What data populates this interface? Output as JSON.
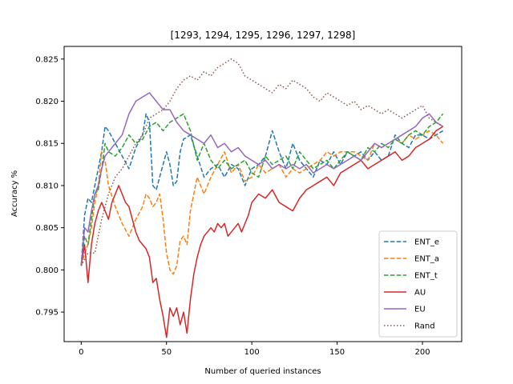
{
  "chart_data": {
    "type": "line",
    "title": "[1293, 1294, 1295, 1296, 1297, 1298]",
    "xlabel": "Number of queried instances",
    "ylabel": "Accuracy %",
    "xlim": [
      -10,
      223
    ],
    "ylim": [
      0.7915,
      0.8265
    ],
    "xticks": [
      0,
      50,
      100,
      150,
      200
    ],
    "yticks": [
      0.795,
      0.8,
      0.805,
      0.81,
      0.815,
      0.82,
      0.825
    ],
    "ytick_labels": [
      "0.795",
      "0.800",
      "0.805",
      "0.810",
      "0.815",
      "0.820",
      "0.825"
    ],
    "grid": false,
    "legend_position": "lower-right",
    "series": [
      {
        "name": "ENT_e",
        "color": "#1f77b4",
        "dash": "dashed",
        "x": [
          0,
          2,
          4,
          6,
          8,
          10,
          12,
          14,
          16,
          20,
          24,
          28,
          32,
          36,
          38,
          40,
          42,
          44,
          46,
          48,
          50,
          52,
          54,
          56,
          58,
          60,
          64,
          68,
          72,
          76,
          80,
          84,
          88,
          92,
          96,
          100,
          104,
          108,
          112,
          116,
          120,
          124,
          128,
          132,
          136,
          140,
          144,
          148,
          152,
          156,
          160,
          164,
          168,
          172,
          176,
          180,
          184,
          188,
          192,
          196,
          200,
          204,
          208,
          212
        ],
        "y": [
          0.8005,
          0.8065,
          0.8085,
          0.808,
          0.81,
          0.812,
          0.814,
          0.817,
          0.8165,
          0.815,
          0.8135,
          0.812,
          0.8145,
          0.816,
          0.8185,
          0.8175,
          0.81,
          0.8095,
          0.811,
          0.8125,
          0.814,
          0.8125,
          0.81,
          0.8105,
          0.814,
          0.8155,
          0.816,
          0.8135,
          0.811,
          0.812,
          0.8125,
          0.811,
          0.8125,
          0.812,
          0.81,
          0.812,
          0.8125,
          0.8135,
          0.8165,
          0.814,
          0.812,
          0.815,
          0.813,
          0.812,
          0.811,
          0.813,
          0.8125,
          0.814,
          0.8125,
          0.814,
          0.8135,
          0.814,
          0.813,
          0.814,
          0.813,
          0.8135,
          0.816,
          0.815,
          0.8145,
          0.816,
          0.816,
          0.8155,
          0.816,
          0.8165
        ]
      },
      {
        "name": "ENT_a",
        "color": "#ff7f0e",
        "dash": "dashed",
        "x": [
          0,
          2,
          4,
          6,
          8,
          10,
          12,
          14,
          16,
          20,
          24,
          28,
          32,
          36,
          38,
          40,
          42,
          44,
          46,
          48,
          50,
          52,
          54,
          56,
          58,
          60,
          62,
          64,
          68,
          72,
          76,
          80,
          84,
          88,
          92,
          96,
          100,
          104,
          108,
          112,
          116,
          120,
          124,
          128,
          132,
          136,
          140,
          144,
          148,
          152,
          156,
          160,
          164,
          168,
          172,
          176,
          180,
          184,
          188,
          192,
          196,
          200,
          204,
          208,
          212
        ],
        "y": [
          0.8005,
          0.802,
          0.803,
          0.805,
          0.808,
          0.81,
          0.814,
          0.813,
          0.81,
          0.8075,
          0.8055,
          0.804,
          0.806,
          0.8075,
          0.809,
          0.8085,
          0.8075,
          0.808,
          0.809,
          0.806,
          0.802,
          0.8,
          0.7995,
          0.8005,
          0.8035,
          0.804,
          0.803,
          0.807,
          0.811,
          0.809,
          0.811,
          0.8125,
          0.814,
          0.8115,
          0.8125,
          0.8105,
          0.811,
          0.8125,
          0.8115,
          0.812,
          0.8125,
          0.811,
          0.812,
          0.8115,
          0.812,
          0.8125,
          0.813,
          0.814,
          0.8135,
          0.814,
          0.814,
          0.814,
          0.8135,
          0.813,
          0.815,
          0.8145,
          0.815,
          0.8155,
          0.815,
          0.816,
          0.8155,
          0.816,
          0.8165,
          0.816,
          0.815
        ]
      },
      {
        "name": "ENT_t",
        "color": "#2ca02c",
        "dash": "dashed",
        "x": [
          0,
          2,
          4,
          6,
          8,
          10,
          12,
          14,
          16,
          20,
          24,
          28,
          32,
          36,
          40,
          44,
          48,
          52,
          56,
          60,
          64,
          68,
          72,
          76,
          80,
          84,
          88,
          92,
          96,
          100,
          104,
          108,
          112,
          116,
          120,
          124,
          128,
          132,
          136,
          140,
          144,
          148,
          152,
          156,
          160,
          164,
          168,
          172,
          176,
          180,
          184,
          188,
          192,
          196,
          200,
          204,
          208,
          212
        ],
        "y": [
          0.8005,
          0.804,
          0.803,
          0.806,
          0.809,
          0.8095,
          0.812,
          0.815,
          0.814,
          0.8135,
          0.8145,
          0.816,
          0.815,
          0.8155,
          0.817,
          0.8175,
          0.8165,
          0.8175,
          0.818,
          0.8185,
          0.8165,
          0.813,
          0.815,
          0.813,
          0.812,
          0.813,
          0.812,
          0.8125,
          0.813,
          0.8115,
          0.811,
          0.8135,
          0.8125,
          0.813,
          0.8135,
          0.812,
          0.814,
          0.813,
          0.812,
          0.8125,
          0.813,
          0.812,
          0.813,
          0.814,
          0.8135,
          0.813,
          0.8145,
          0.814,
          0.815,
          0.8145,
          0.8155,
          0.815,
          0.816,
          0.8165,
          0.816,
          0.817,
          0.8175,
          0.8185
        ]
      },
      {
        "name": "AU",
        "color": "#d62728",
        "dash": "solid",
        "x": [
          0,
          2,
          4,
          6,
          8,
          10,
          12,
          14,
          16,
          18,
          20,
          22,
          24,
          26,
          28,
          30,
          32,
          34,
          36,
          38,
          40,
          42,
          44,
          46,
          48,
          50,
          52,
          54,
          56,
          58,
          60,
          62,
          64,
          66,
          68,
          70,
          72,
          74,
          76,
          78,
          80,
          82,
          84,
          86,
          88,
          90,
          92,
          94,
          96,
          98,
          100,
          104,
          108,
          112,
          116,
          120,
          124,
          128,
          132,
          136,
          140,
          144,
          148,
          152,
          156,
          160,
          164,
          168,
          172,
          176,
          180,
          184,
          188,
          192,
          196,
          200,
          204,
          208,
          212
        ],
        "y": [
          0.8005,
          0.803,
          0.7985,
          0.803,
          0.8055,
          0.807,
          0.808,
          0.807,
          0.806,
          0.808,
          0.809,
          0.81,
          0.809,
          0.808,
          0.8075,
          0.806,
          0.8045,
          0.8035,
          0.803,
          0.8025,
          0.8015,
          0.7985,
          0.799,
          0.7965,
          0.7945,
          0.792,
          0.7955,
          0.7945,
          0.7955,
          0.7935,
          0.795,
          0.7925,
          0.7965,
          0.7995,
          0.8015,
          0.803,
          0.804,
          0.8045,
          0.805,
          0.8045,
          0.8055,
          0.805,
          0.8055,
          0.804,
          0.8045,
          0.805,
          0.8055,
          0.8045,
          0.8055,
          0.8065,
          0.808,
          0.809,
          0.8085,
          0.8095,
          0.808,
          0.8075,
          0.807,
          0.8085,
          0.8095,
          0.81,
          0.8105,
          0.811,
          0.81,
          0.8115,
          0.812,
          0.8125,
          0.813,
          0.812,
          0.8125,
          0.813,
          0.8135,
          0.814,
          0.813,
          0.8135,
          0.8145,
          0.815,
          0.8155,
          0.8165,
          0.817
        ]
      },
      {
        "name": "EU",
        "color": "#9467bd",
        "dash": "solid",
        "x": [
          0,
          2,
          4,
          6,
          8,
          10,
          12,
          14,
          16,
          20,
          24,
          28,
          32,
          36,
          40,
          44,
          48,
          52,
          56,
          60,
          64,
          68,
          72,
          76,
          80,
          84,
          88,
          92,
          96,
          100,
          104,
          108,
          112,
          116,
          120,
          124,
          128,
          132,
          136,
          140,
          144,
          148,
          152,
          156,
          160,
          164,
          168,
          172,
          176,
          180,
          184,
          188,
          192,
          196,
          200,
          204,
          208,
          212
        ],
        "y": [
          0.8005,
          0.805,
          0.8045,
          0.807,
          0.809,
          0.81,
          0.812,
          0.8135,
          0.814,
          0.815,
          0.816,
          0.8185,
          0.82,
          0.8205,
          0.821,
          0.82,
          0.819,
          0.819,
          0.8175,
          0.8165,
          0.816,
          0.8155,
          0.815,
          0.816,
          0.8145,
          0.815,
          0.814,
          0.8145,
          0.8135,
          0.813,
          0.8125,
          0.813,
          0.812,
          0.8125,
          0.812,
          0.8125,
          0.812,
          0.8125,
          0.8115,
          0.812,
          0.8125,
          0.812,
          0.8125,
          0.813,
          0.8135,
          0.813,
          0.814,
          0.815,
          0.8145,
          0.815,
          0.8155,
          0.816,
          0.8165,
          0.817,
          0.818,
          0.8185,
          0.8175,
          0.817
        ]
      },
      {
        "name": "Rand",
        "color": "#8c564b",
        "dash": "dotted",
        "x": [
          0,
          4,
          8,
          12,
          16,
          20,
          24,
          28,
          32,
          36,
          40,
          44,
          48,
          52,
          56,
          60,
          64,
          68,
          72,
          76,
          80,
          84,
          88,
          92,
          96,
          100,
          104,
          108,
          112,
          116,
          120,
          124,
          128,
          132,
          136,
          140,
          144,
          148,
          152,
          156,
          160,
          164,
          168,
          172,
          176,
          180,
          184,
          188,
          192,
          196,
          200,
          204,
          208,
          212
        ],
        "y": [
          0.8005,
          0.802,
          0.802,
          0.806,
          0.809,
          0.811,
          0.812,
          0.8135,
          0.815,
          0.816,
          0.818,
          0.8185,
          0.819,
          0.82,
          0.8215,
          0.8225,
          0.823,
          0.8225,
          0.8235,
          0.823,
          0.824,
          0.8245,
          0.825,
          0.8245,
          0.823,
          0.8225,
          0.822,
          0.8215,
          0.821,
          0.822,
          0.8215,
          0.8225,
          0.822,
          0.8215,
          0.8205,
          0.82,
          0.821,
          0.8205,
          0.82,
          0.8195,
          0.82,
          0.819,
          0.8195,
          0.819,
          0.8185,
          0.819,
          0.8185,
          0.818,
          0.8185,
          0.819,
          0.8195,
          0.818,
          0.8175,
          0.817
        ]
      }
    ]
  }
}
